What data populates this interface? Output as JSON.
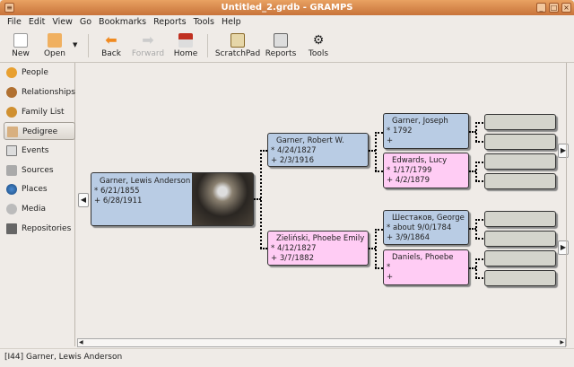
{
  "window": {
    "title": "Untitled_2.grdb - GRAMPS"
  },
  "menu": [
    "File",
    "Edit",
    "View",
    "Go",
    "Bookmarks",
    "Reports",
    "Tools",
    "Help"
  ],
  "toolbar": {
    "new": "New",
    "open": "Open",
    "back": "Back",
    "forward": "Forward",
    "home": "Home",
    "scratchpad": "ScratchPad",
    "reports": "Reports",
    "tools": "Tools"
  },
  "sidebar": [
    {
      "label": "People"
    },
    {
      "label": "Relationships"
    },
    {
      "label": "Family List"
    },
    {
      "label": "Pedigree",
      "active": true
    },
    {
      "label": "Events"
    },
    {
      "label": "Sources"
    },
    {
      "label": "Places"
    },
    {
      "label": "Media"
    },
    {
      "label": "Repositories"
    }
  ],
  "pedigree": {
    "root": {
      "name": "Garner, Lewis Anderson",
      "birth": "* 6/21/1855",
      "death": "+ 6/28/1911",
      "gender": "male"
    },
    "gen2": [
      {
        "name": "Garner, Robert W.",
        "birth": "* 4/24/1827",
        "death": "+ 2/3/1916",
        "gender": "male"
      },
      {
        "name": "Zieliński, Phoebe Emily",
        "birth": "* 4/12/1827",
        "death": "+ 3/7/1882",
        "gender": "female"
      }
    ],
    "gen3": [
      {
        "name": "Garner, Joseph",
        "birth": "* 1792",
        "death": "+",
        "gender": "male"
      },
      {
        "name": "Edwards, Lucy",
        "birth": "* 1/17/1799",
        "death": "+ 4/2/1879",
        "gender": "female"
      },
      {
        "name": "Шестаков, George",
        "birth": "* about 9/0/1784",
        "death": "+ 3/9/1864",
        "gender": "male"
      },
      {
        "name": "Daniels, Phoebe",
        "birth": "*",
        "death": "+",
        "gender": "female"
      }
    ]
  },
  "status": {
    "text": "[I44]  Garner, Lewis Anderson"
  },
  "colors": {
    "male": "#b9cce4",
    "female": "#ffccf4",
    "empty": "#d4d4cc",
    "titlebar": "#d9874a"
  }
}
